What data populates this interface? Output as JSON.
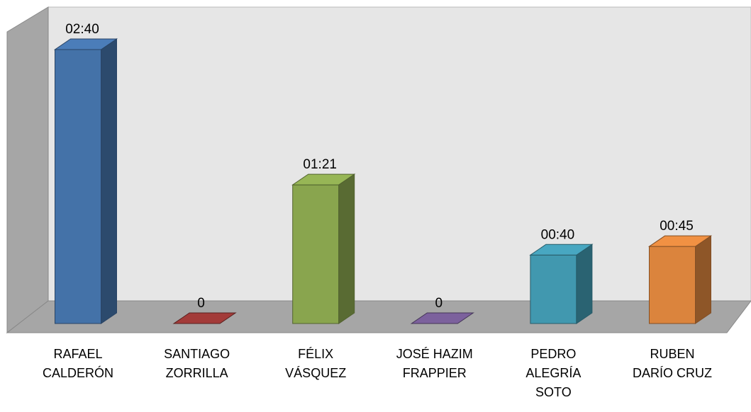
{
  "chart_data": {
    "type": "bar3d",
    "categories": [
      "RAFAEL\nCALDERÓN",
      "SANTIAGO\nZORRILLA",
      "FÉLIX\nVÁSQUEZ",
      "JOSÉ  HAZIM\nFRAPPIER",
      "PEDRO\nALEGRÍA\nSOTO",
      "RUBEN\nDARÍO CRUZ"
    ],
    "values": [
      160,
      0,
      81,
      0,
      40,
      45
    ],
    "value_labels": [
      "02:40",
      "0",
      "01:21",
      "0",
      "00:40",
      "00:45"
    ],
    "colors": [
      "#4472a8",
      "#943634",
      "#89a54e",
      "#71588f",
      "#4198af",
      "#db843d"
    ]
  }
}
